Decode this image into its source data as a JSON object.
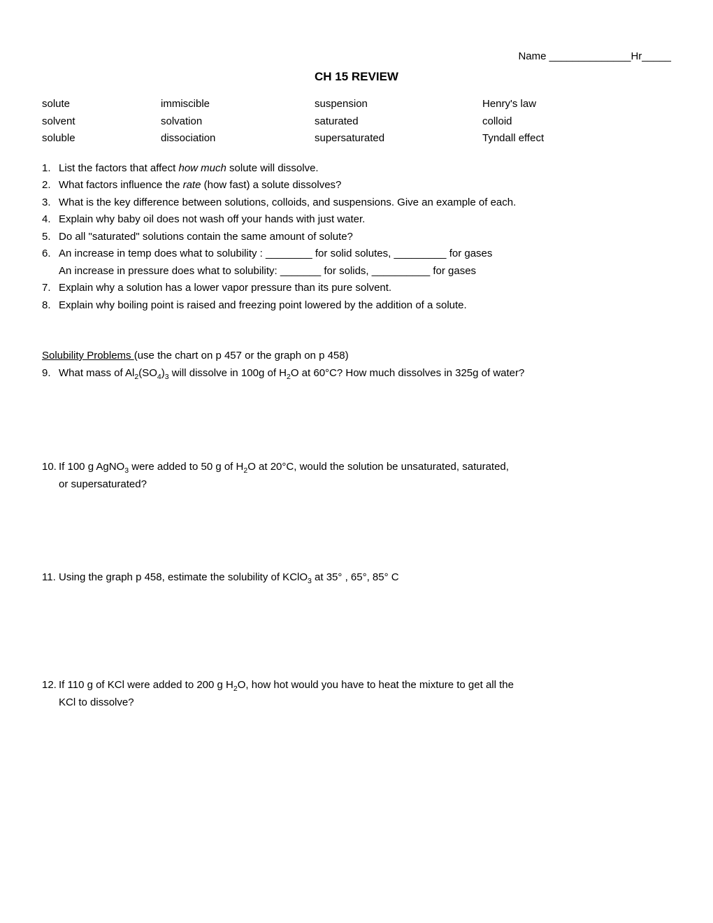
{
  "header": {
    "name_label": "Name ______________",
    "hr_label": "Hr_____"
  },
  "title": "CH 15 REVIEW",
  "vocab": {
    "col1": [
      "solute",
      "solvent",
      "soluble"
    ],
    "col2": [
      "immiscible",
      "solvation",
      "dissociation"
    ],
    "col3": [
      "suspension",
      "saturated",
      "supersaturated"
    ],
    "col4": [
      "Henry's law",
      "colloid",
      "Tyndall effect"
    ]
  },
  "questions": {
    "q1": {
      "num": "1.",
      "pre": "List the factors that affect ",
      "it": "how much",
      "post": " solute will dissolve."
    },
    "q2": {
      "num": "2.",
      "pre": "What factors influence the ",
      "it": "rate",
      "post": " (how fast) a solute dissolves?"
    },
    "q3": {
      "num": "3.",
      "text": "What is the key difference between solutions, colloids, and suspensions.  Give an example of each."
    },
    "q4": {
      "num": "4.",
      "text": "Explain why baby oil does not wash off your hands with just water."
    },
    "q5": {
      "num": "5.",
      "text": "Do all \"saturated\" solutions contain the same amount of solute?"
    },
    "q6": {
      "num": "6.",
      "text": "An increase in temp does what to solubility :  ________ for solid solutes,  _________ for gases"
    },
    "q6b": {
      "text": "An increase in pressure does what to solubility:  _______ for solids,   __________ for gases"
    },
    "q7": {
      "num": "7.",
      "text": "Explain why a solution has a lower vapor pressure than its pure solvent."
    },
    "q8": {
      "num": "8.",
      "text": "Explain why boiling point is raised and freezing point lowered by the addition of a solute."
    }
  },
  "solubility_header": {
    "title": "Solubility Problems  ",
    "note": "(use the chart on p 457 or the graph on p 458)"
  },
  "problems": {
    "p9": {
      "num": "9.",
      "html": "What mass of Al<sub>2</sub>(SO<sub>4</sub>)<sub>3</sub> will dissolve in 100g of H<sub>2</sub>O at 60°C?  How much dissolves in 325g of water?"
    },
    "p10": {
      "num": "10.",
      "html": "If 100 g AgNO<sub>3</sub> were added to 50 g of H<sub>2</sub>O at 20°C,  would the solution be unsaturated, saturated,",
      "line2": "or supersaturated?"
    },
    "p11": {
      "num": "11.",
      "html": "Using the graph p 458,  estimate the solubility of KClO<sub>3</sub>  at 35° ,   65°,   85° C"
    },
    "p12": {
      "num": "12.",
      "html": "If 110 g of KCl were added to 200 g H<sub>2</sub>O, how hot would you have to heat the mixture to get all the",
      "line2": "KCl to dissolve?"
    }
  }
}
